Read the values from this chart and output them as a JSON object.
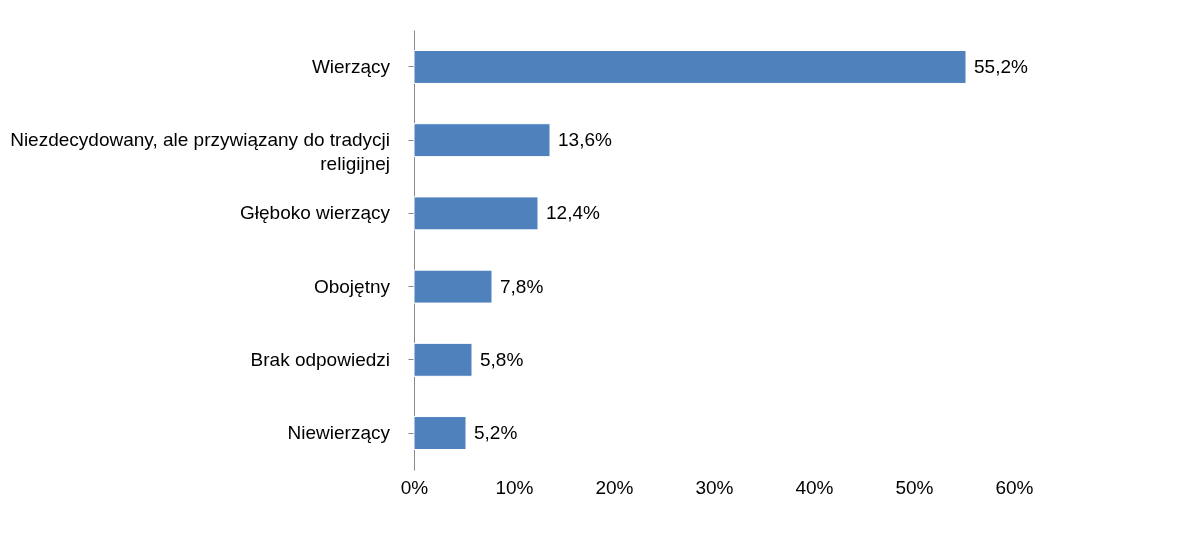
{
  "chart_data": {
    "type": "bar",
    "orientation": "horizontal",
    "categories": [
      "Wierzący",
      "Niezdecydowany, ale przywiązany do tradycji religijnej",
      "Głęboko wierzący",
      "Obojętny",
      "Brak odpowiedzi",
      "Niewierzący"
    ],
    "values": [
      55.2,
      13.6,
      12.4,
      7.8,
      5.8,
      5.2
    ],
    "value_labels": [
      "55,2%",
      "13,6%",
      "12,4%",
      "7,8%",
      "5,8%",
      "5,2%"
    ],
    "color": "#4f81bd",
    "xlim": [
      0,
      60
    ],
    "xticks": [
      {
        "value": 0,
        "label": "0%"
      },
      {
        "value": 10,
        "label": "10%"
      },
      {
        "value": 20,
        "label": "20%"
      },
      {
        "value": 30,
        "label": "30%"
      },
      {
        "value": 40,
        "label": "40%"
      },
      {
        "value": 50,
        "label": "50%"
      },
      {
        "value": 60,
        "label": "60%"
      }
    ],
    "grid": false
  }
}
